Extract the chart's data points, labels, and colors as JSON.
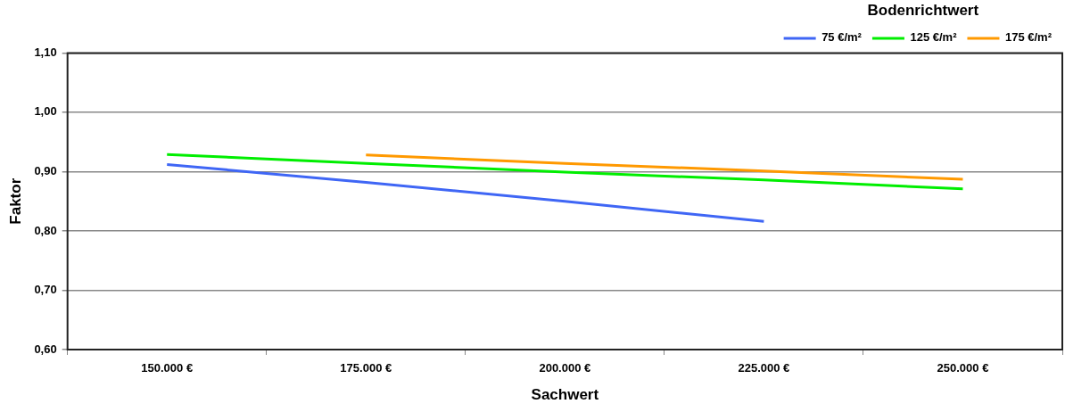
{
  "chart_data": {
    "type": "line",
    "xlabel": "Sachwert",
    "ylabel": "Faktor",
    "legend_title": "Bodenrichtwert",
    "categories": [
      "150.000 €",
      "175.000 €",
      "200.000 €",
      "225.000 €",
      "250.000 €"
    ],
    "series": [
      {
        "name": "75 €/m²",
        "color": "#3f66f5",
        "values": [
          0.912,
          0.882,
          0.85,
          0.816,
          null
        ]
      },
      {
        "name": "125 €/m²",
        "color": "#00ee00",
        "values": [
          0.929,
          0.914,
          0.899,
          0.886,
          0.871
        ]
      },
      {
        "name": "175 €/m²",
        "color": "#ff9900",
        "values": [
          null,
          0.928,
          0.914,
          0.901,
          0.887
        ]
      }
    ],
    "ylim": [
      0.6,
      1.1
    ],
    "yticks": [
      {
        "value": 0.6,
        "label": "0,60"
      },
      {
        "value": 0.7,
        "label": "0,70"
      },
      {
        "value": 0.8,
        "label": "0,80"
      },
      {
        "value": 0.9,
        "label": "0,90"
      },
      {
        "value": 1.0,
        "label": "1,00"
      },
      {
        "value": 1.1,
        "label": "1,10"
      }
    ],
    "grid": "y",
    "legend": "top right",
    "marker": "none",
    "line_style": "solid"
  }
}
